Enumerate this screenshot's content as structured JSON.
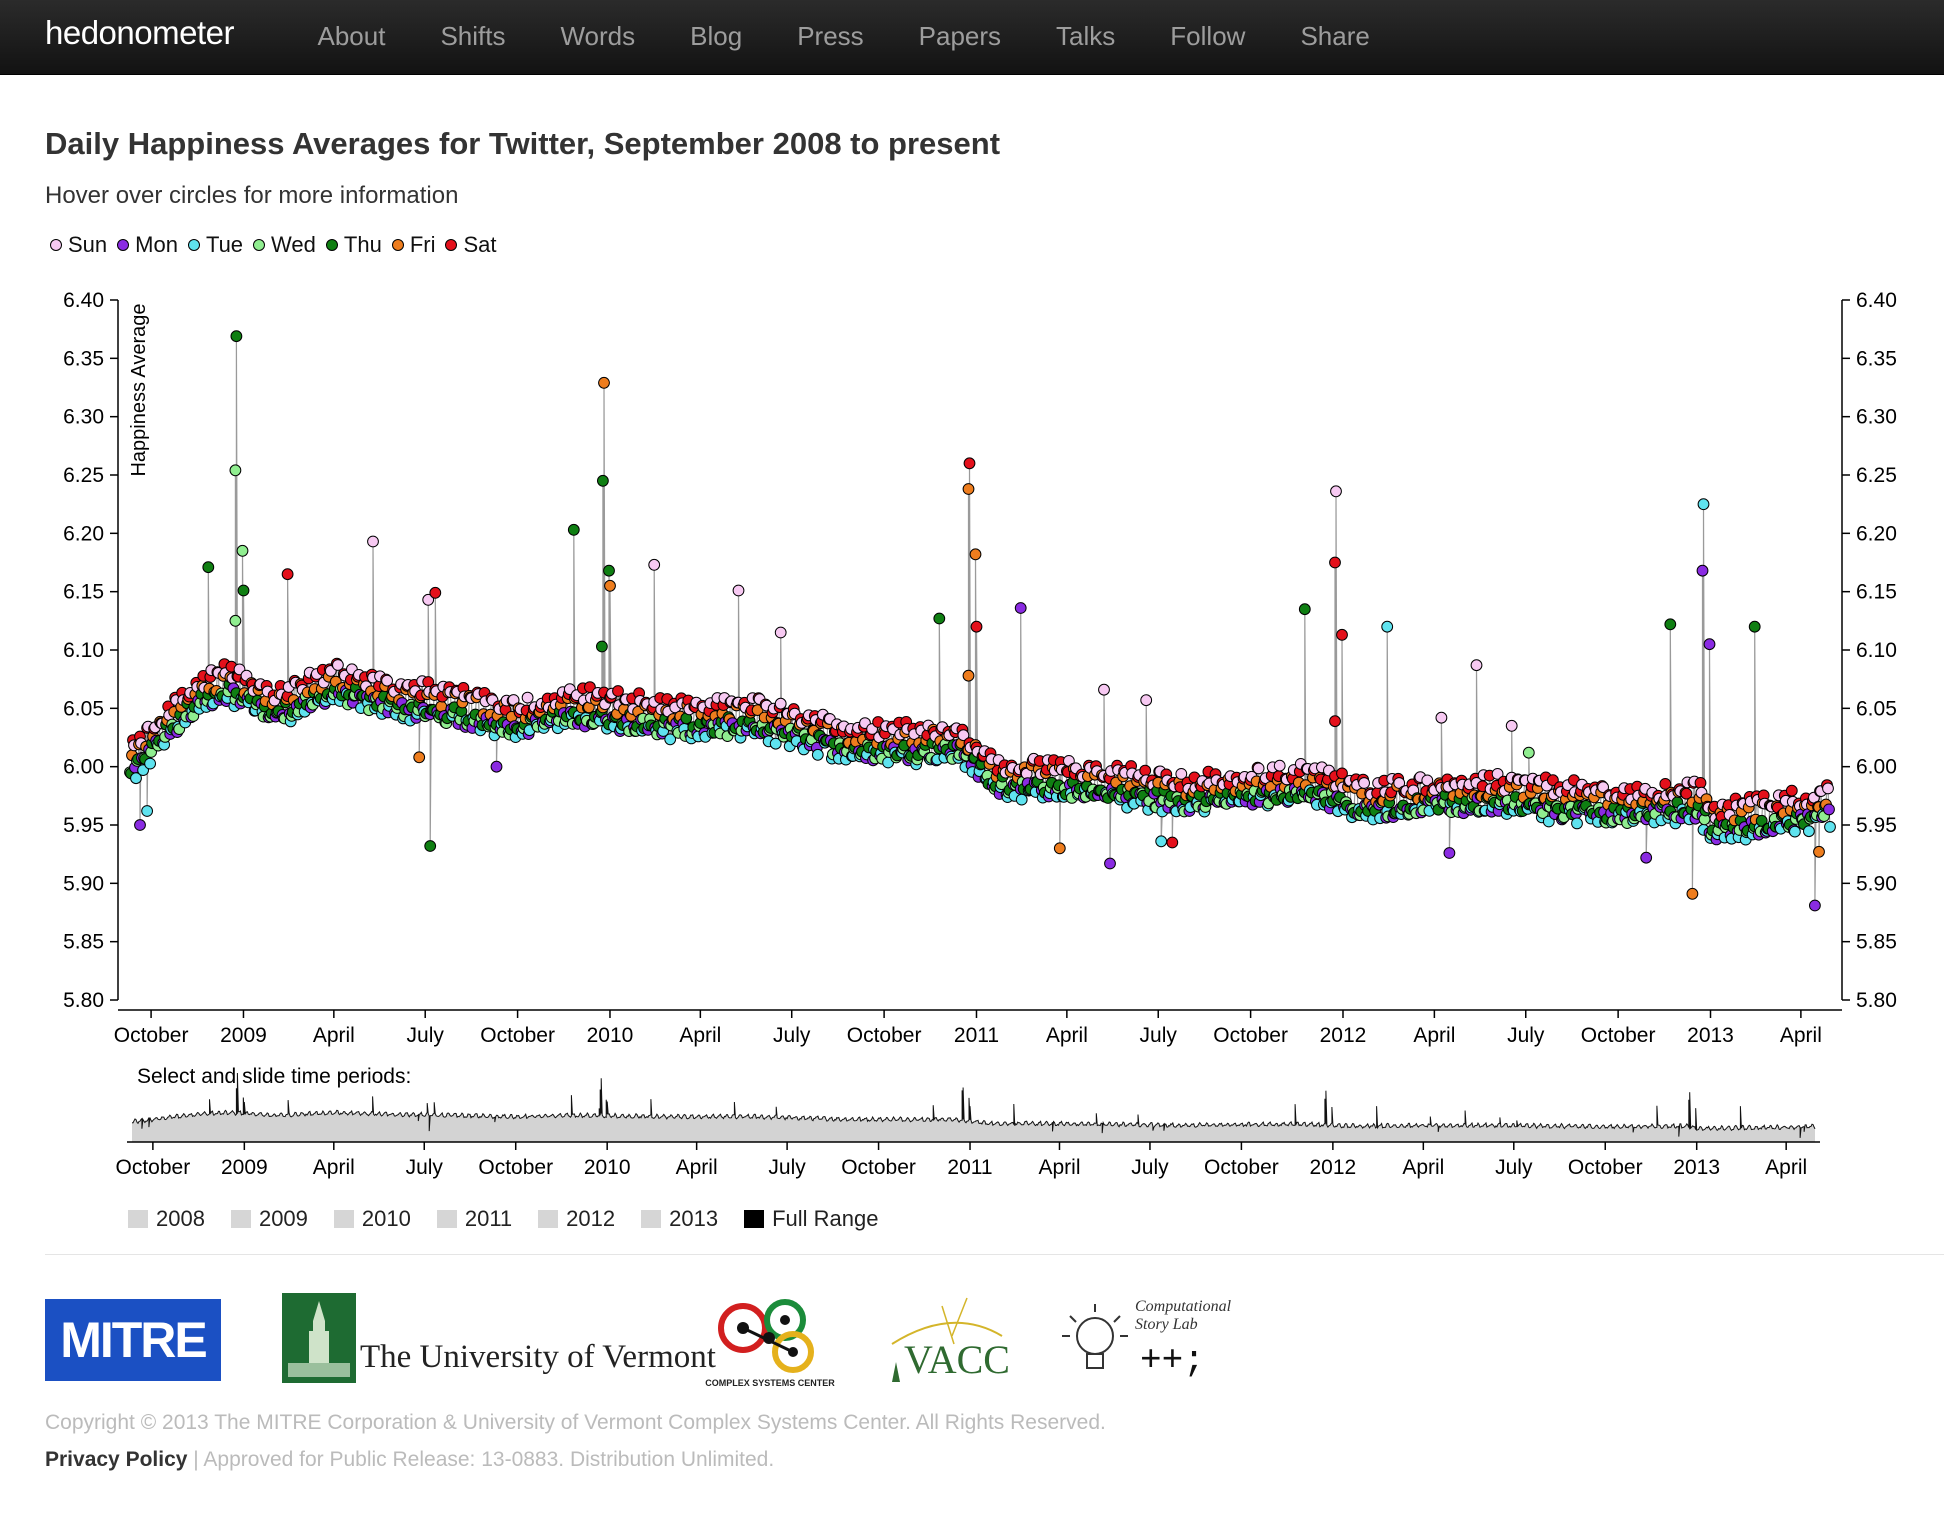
{
  "nav": {
    "brand": "hedonometer",
    "items": [
      "About",
      "Shifts",
      "Words",
      "Blog",
      "Press",
      "Papers",
      "Talks",
      "Follow",
      "Share"
    ]
  },
  "page": {
    "title": "Daily Happiness Averages for Twitter, September 2008 to present",
    "subtitle": "Hover over circles for more information"
  },
  "legend": [
    {
      "label": "Sun",
      "color": "#f7c9f2"
    },
    {
      "label": "Mon",
      "color": "#8a2be2"
    },
    {
      "label": "Tue",
      "color": "#5fe3ef"
    },
    {
      "label": "Wed",
      "color": "#90ee90"
    },
    {
      "label": "Thu",
      "color": "#0f7f12"
    },
    {
      "label": "Fri",
      "color": "#ee7d1e"
    },
    {
      "label": "Sat",
      "color": "#e4101b"
    }
  ],
  "chart_data": {
    "type": "scatter",
    "title": "Daily Happiness Averages for Twitter, September 2008 to present",
    "ylabel": "Happiness Average",
    "ylim": [
      5.8,
      6.4
    ],
    "y_ticks": [
      "6.40",
      "6.35",
      "6.30",
      "6.25",
      "6.20",
      "6.15",
      "6.10",
      "6.05",
      "6.00",
      "5.95",
      "5.90",
      "5.85",
      "5.80"
    ],
    "x_tick_labels": [
      "October",
      "2009",
      "April",
      "July",
      "October",
      "2010",
      "April",
      "July",
      "October",
      "2011",
      "April",
      "July",
      "October",
      "2012",
      "April",
      "July",
      "October",
      "2013",
      "April"
    ],
    "x_range": [
      "2008-09-10",
      "2013-04-30"
    ],
    "grid": false,
    "legend_placement": "top-left",
    "series_names": [
      "Sun",
      "Mon",
      "Tue",
      "Wed",
      "Thu",
      "Fri",
      "Sat"
    ],
    "baseline": [
      [
        "2008-09-10",
        6.0
      ],
      [
        "2008-10-01",
        6.02
      ],
      [
        "2008-11-15",
        6.06
      ],
      [
        "2008-12-20",
        6.07
      ],
      [
        "2009-02-01",
        6.05
      ],
      [
        "2009-04-01",
        6.07
      ],
      [
        "2009-05-15",
        6.06
      ],
      [
        "2009-08-01",
        6.05
      ],
      [
        "2009-10-01",
        6.04
      ],
      [
        "2009-12-01",
        6.05
      ],
      [
        "2010-03-01",
        6.04
      ],
      [
        "2010-06-01",
        6.04
      ],
      [
        "2010-09-01",
        6.02
      ],
      [
        "2010-12-15",
        6.02
      ],
      [
        "2011-01-20",
        5.99
      ],
      [
        "2011-05-01",
        5.985
      ],
      [
        "2011-08-01",
        5.975
      ],
      [
        "2011-12-01",
        5.985
      ],
      [
        "2012-01-15",
        5.97
      ],
      [
        "2012-06-01",
        5.975
      ],
      [
        "2012-10-01",
        5.965
      ],
      [
        "2012-12-20",
        5.97
      ],
      [
        "2013-01-05",
        5.95
      ],
      [
        "2013-04-30",
        5.965
      ]
    ],
    "day_offsets": [
      0.012,
      -0.008,
      -0.011,
      -0.007,
      -0.004,
      0.006,
      0.013
    ],
    "spikes": [
      {
        "date": "2008-09-20",
        "value": 5.95,
        "day": "Mon"
      },
      {
        "date": "2008-09-27",
        "value": 5.962,
        "day": "Tue"
      },
      {
        "date": "2008-11-27",
        "value": 6.171,
        "day": "Thu"
      },
      {
        "date": "2008-12-24",
        "value": 6.125,
        "day": "Wed"
      },
      {
        "date": "2008-12-25",
        "value": 6.369,
        "day": "Thu"
      },
      {
        "date": "2008-12-24",
        "value": 6.254,
        "day": "Wed"
      },
      {
        "date": "2008-12-31",
        "value": 6.185,
        "day": "Wed"
      },
      {
        "date": "2009-01-01",
        "value": 6.151,
        "day": "Thu"
      },
      {
        "date": "2009-02-14",
        "value": 6.165,
        "day": "Sat"
      },
      {
        "date": "2009-05-10",
        "value": 6.193,
        "day": "Sun"
      },
      {
        "date": "2009-06-25",
        "value": 6.008,
        "day": "Fri"
      },
      {
        "date": "2009-07-04",
        "value": 6.143,
        "day": "Sun"
      },
      {
        "date": "2009-07-06",
        "value": 5.932,
        "day": "Thu"
      },
      {
        "date": "2009-07-11",
        "value": 6.149,
        "day": "Sat"
      },
      {
        "date": "2009-09-10",
        "value": 6.0,
        "day": "Mon"
      },
      {
        "date": "2009-11-26",
        "value": 6.203,
        "day": "Thu"
      },
      {
        "date": "2009-12-24",
        "value": 6.103,
        "day": "Thu"
      },
      {
        "date": "2009-12-25",
        "value": 6.245,
        "day": "Thu"
      },
      {
        "date": "2009-12-26",
        "value": 6.329,
        "day": "Fri"
      },
      {
        "date": "2009-12-31",
        "value": 6.168,
        "day": "Thu"
      },
      {
        "date": "2010-01-01",
        "value": 6.155,
        "day": "Fri"
      },
      {
        "date": "2010-02-14",
        "value": 6.173,
        "day": "Sun"
      },
      {
        "date": "2010-05-09",
        "value": 6.151,
        "day": "Sun"
      },
      {
        "date": "2010-06-20",
        "value": 6.115,
        "day": "Sun"
      },
      {
        "date": "2010-11-25",
        "value": 6.127,
        "day": "Thu"
      },
      {
        "date": "2010-12-24",
        "value": 6.078,
        "day": "Fri"
      },
      {
        "date": "2010-12-25",
        "value": 6.26,
        "day": "Sat"
      },
      {
        "date": "2010-12-24",
        "value": 6.238,
        "day": "Fri"
      },
      {
        "date": "2010-12-31",
        "value": 6.182,
        "day": "Fri"
      },
      {
        "date": "2011-01-01",
        "value": 6.12,
        "day": "Sat"
      },
      {
        "date": "2011-02-14",
        "value": 6.136,
        "day": "Mon"
      },
      {
        "date": "2011-03-25",
        "value": 5.93,
        "day": "Fri"
      },
      {
        "date": "2011-05-08",
        "value": 6.066,
        "day": "Sun"
      },
      {
        "date": "2011-05-14",
        "value": 5.917,
        "day": "Mon"
      },
      {
        "date": "2011-06-19",
        "value": 6.057,
        "day": "Sun"
      },
      {
        "date": "2011-07-04",
        "value": 5.936,
        "day": "Tue"
      },
      {
        "date": "2011-07-15",
        "value": 5.935,
        "day": "Sat"
      },
      {
        "date": "2011-11-24",
        "value": 6.135,
        "day": "Thu"
      },
      {
        "date": "2011-12-24",
        "value": 6.039,
        "day": "Sat"
      },
      {
        "date": "2011-12-25",
        "value": 6.236,
        "day": "Sun"
      },
      {
        "date": "2011-12-24",
        "value": 6.175,
        "day": "Sat"
      },
      {
        "date": "2011-12-31",
        "value": 6.113,
        "day": "Sat"
      },
      {
        "date": "2012-02-14",
        "value": 6.12,
        "day": "Tue"
      },
      {
        "date": "2012-04-08",
        "value": 6.042,
        "day": "Sun"
      },
      {
        "date": "2012-04-16",
        "value": 5.926,
        "day": "Mon"
      },
      {
        "date": "2012-05-13",
        "value": 6.087,
        "day": "Sun"
      },
      {
        "date": "2012-06-17",
        "value": 6.035,
        "day": "Sun"
      },
      {
        "date": "2012-07-04",
        "value": 6.012,
        "day": "Wed"
      },
      {
        "date": "2012-10-29",
        "value": 5.922,
        "day": "Mon"
      },
      {
        "date": "2012-11-22",
        "value": 6.122,
        "day": "Thu"
      },
      {
        "date": "2012-12-14",
        "value": 5.891,
        "day": "Fri"
      },
      {
        "date": "2012-12-24",
        "value": 6.168,
        "day": "Mon"
      },
      {
        "date": "2012-12-25",
        "value": 6.225,
        "day": "Tue"
      },
      {
        "date": "2012-12-31",
        "value": 6.105,
        "day": "Mon"
      },
      {
        "date": "2013-02-14",
        "value": 6.12,
        "day": "Thu"
      },
      {
        "date": "2013-04-15",
        "value": 5.881,
        "day": "Mon"
      },
      {
        "date": "2013-04-19",
        "value": 5.927,
        "day": "Fri"
      }
    ]
  },
  "brush": {
    "label": "Select and slide time periods:",
    "x_tick_labels": [
      "October",
      "2009",
      "April",
      "July",
      "October",
      "2010",
      "April",
      "July",
      "October",
      "2011",
      "April",
      "July",
      "October",
      "2012",
      "April",
      "July",
      "October",
      "2013",
      "April"
    ]
  },
  "year_buttons": [
    "2008",
    "2009",
    "2010",
    "2011",
    "2012",
    "2013",
    "Full Range"
  ],
  "logos": {
    "mitre": "MITRE",
    "uvm": "The University of Vermont",
    "csc": "COMPLEX SYSTEMS CENTER",
    "vacc": "VACC",
    "csl_line1": "Computational",
    "csl_line2": "Story Lab",
    "csl_symbol": "++;"
  },
  "footer": {
    "copyright": "Copyright © 2013 The MITRE Corporation & University of Vermont Complex Systems Center. All Rights Reserved.",
    "privacy_link": "Privacy Policy",
    "release": " | Approved for Public Release: 13-0883. Distribution Unlimited."
  }
}
